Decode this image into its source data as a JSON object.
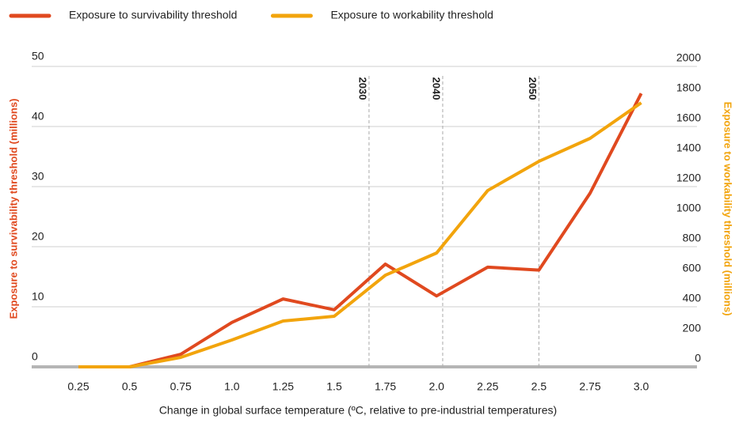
{
  "chart_data": {
    "type": "line",
    "xlabel": "Change in global surface temperature (ºC, relative to pre-industrial temperatures)",
    "ylabel": "Exposure to survivability threshold (millions)",
    "y2label": "Exposure to workability threshold (millions)",
    "categories": [
      "0.25",
      "0.5",
      "0.75",
      "1.0",
      "1.25",
      "1.5",
      "1.75",
      "2.0",
      "2.25",
      "2.5",
      "2.75",
      "3.0"
    ],
    "series": [
      {
        "name": "Exposure to survivability threshold",
        "color": "#e0491f",
        "values": [
          0,
          0,
          2.1,
          7.4,
          11.3,
          9.5,
          17.1,
          11.8,
          16.6,
          16.1,
          28.9,
          45.5
        ]
      },
      {
        "name": "Exposure to workability threshold",
        "color": "#f2a40c",
        "axis": "y2",
        "values": [
          0,
          0,
          63,
          179,
          305,
          337,
          610,
          758,
          1174,
          1368,
          1521,
          1758
        ]
      }
    ],
    "ylim": [
      0,
      50
    ],
    "yticks": [
      0,
      10,
      20,
      30,
      40,
      50
    ],
    "y2lim": [
      0,
      2000
    ],
    "y2ticks": [
      0,
      200,
      400,
      600,
      800,
      1000,
      1200,
      1400,
      1600,
      1800,
      2000
    ],
    "y2ticks_labels": null,
    "annotations": [
      {
        "text": "2030",
        "x": 1.67
      },
      {
        "text": "2040",
        "x": 2.03
      },
      {
        "text": "2050",
        "x": 2.5
      }
    ],
    "grid": true,
    "legend": "top-left"
  }
}
